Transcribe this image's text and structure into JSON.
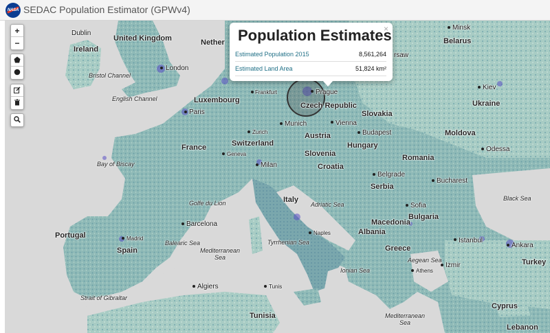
{
  "app": {
    "logo_text": "NASA",
    "title": "SEDAC Population Estimator (GPWv4)"
  },
  "toolbar": {
    "zoom_in": "+",
    "zoom_out": "−",
    "polygon_icon": "polygon-icon",
    "circle_icon": "circle-icon",
    "edit_icon": "edit-icon",
    "delete_icon": "trash-icon",
    "search_icon": "search-icon"
  },
  "popup": {
    "title": "Population Estimates",
    "close": "×",
    "rows": [
      {
        "label": "Estimated Population 2015",
        "value": "8,561,264"
      },
      {
        "label": "Estimated Land Area",
        "value": "51,824 km²"
      }
    ]
  },
  "map": {
    "colors": {
      "water": "#d9d9d9",
      "land_low": "#9fc5c0",
      "land_mid": "#6fa3ab",
      "land_high": "#4f7fa0",
      "urban": "#5a4fc4"
    },
    "countries": [
      "Ireland",
      "United Kingdom",
      "Netherlands",
      "Luxembourg",
      "Czech Republic",
      "Slovakia",
      "Belarus",
      "Ukraine",
      "Moldova",
      "Switzerland",
      "Austria",
      "Hungary",
      "Romania",
      "France",
      "Slovenia",
      "Croatia",
      "Serbia",
      "Italy",
      "Bulgaria",
      "Macedonia",
      "Albania",
      "Greece",
      "Portugal",
      "Spain",
      "Turkey",
      "Tunisia",
      "Cyprus",
      "Lebanon"
    ],
    "cities": [
      "Dublin",
      "London",
      "Paris",
      "Frankfurt",
      "Prague",
      "Munich",
      "Vienna",
      "Budapest",
      "Zurich",
      "Geneva",
      "Milan",
      "Belgrade",
      "Bucharest",
      "Sofia",
      "Barcelona",
      "Madrid",
      "Naples",
      "Athens",
      "Istanbul",
      "Ankara",
      "Izmir",
      "Algiers",
      "Tunis",
      "Minsk",
      "Kiev",
      "Odessa",
      "Warsaw"
    ],
    "seas": [
      "Bristol Channel",
      "English Channel",
      "Bay of Biscay",
      "Golfe du Lion",
      "Adriatic Sea",
      "Balearic Sea",
      "Mediterranean Sea",
      "Tyrrhenian Sea",
      "Ionian Sea",
      "Aegean Sea",
      "Black Sea",
      "Strait of Gibraltar"
    ],
    "partial_labels": [
      "Nether",
      "rsaw"
    ]
  }
}
